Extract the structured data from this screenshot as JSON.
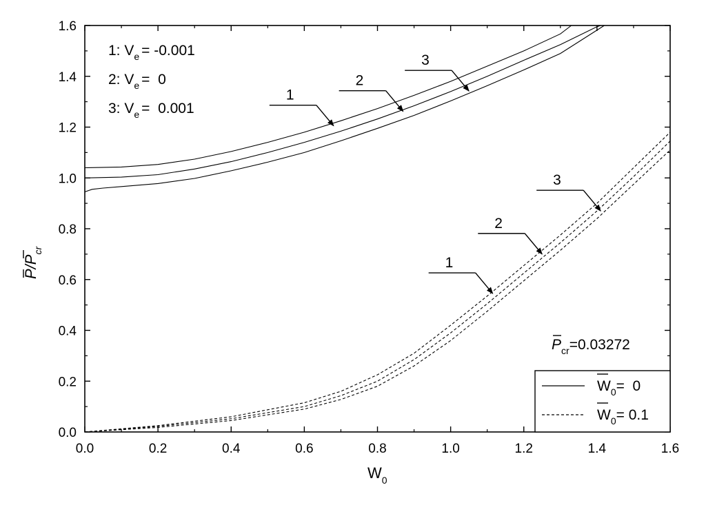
{
  "chart_data": {
    "type": "line",
    "xlim": [
      0,
      1.6
    ],
    "ylim": [
      0,
      1.6
    ],
    "x_ticks": [
      "0.0",
      "0.2",
      "0.4",
      "0.6",
      "0.8",
      "1.0",
      "1.2",
      "1.4",
      "1.6"
    ],
    "y_ticks": [
      "0.0",
      "0.2",
      "0.4",
      "0.6",
      "0.8",
      "1.0",
      "1.2",
      "1.4",
      "1.6"
    ],
    "xlabel": {
      "main": "W",
      "sub": "0"
    },
    "ylabel": {
      "p1": "P",
      "slash": "/",
      "p2": "P",
      "sub": "cr"
    },
    "grid": false,
    "legend": {
      "placement": "bottom-right",
      "entries": [
        {
          "main": "W",
          "sub": "0",
          "value": "=  0",
          "style": "solid"
        },
        {
          "main": "W",
          "sub": "0",
          "value": "= 0.1",
          "style": "dashed"
        }
      ]
    },
    "ve_labels": [
      {
        "prefix": "1: V",
        "sub": "e",
        "value": "= -0.001"
      },
      {
        "prefix": "2: V",
        "sub": "e",
        "value": "=  0"
      },
      {
        "prefix": "3: V",
        "sub": "e",
        "value": "=  0.001"
      }
    ],
    "pcr_label": {
      "main": "P",
      "sub": "cr",
      "value": "=0.03272"
    },
    "series": [
      {
        "group": "W0=0",
        "style": "solid",
        "label": "1",
        "x": [
          0,
          0.1,
          0.2,
          0.3,
          0.4,
          0.5,
          0.6,
          0.7,
          0.8,
          0.9,
          1.0,
          1.1,
          1.2,
          1.3,
          1.33
        ],
        "y": [
          1.04,
          1.043,
          1.053,
          1.074,
          1.104,
          1.14,
          1.18,
          1.225,
          1.273,
          1.325,
          1.38,
          1.44,
          1.5,
          1.567,
          1.6
        ]
      },
      {
        "group": "W0=0",
        "style": "solid",
        "label": "2",
        "x": [
          0,
          0.1,
          0.2,
          0.3,
          0.4,
          0.5,
          0.6,
          0.7,
          0.8,
          0.9,
          1.0,
          1.1,
          1.2,
          1.3,
          1.4,
          1.41
        ],
        "y": [
          1.0,
          1.003,
          1.013,
          1.035,
          1.064,
          1.1,
          1.14,
          1.184,
          1.232,
          1.284,
          1.34,
          1.4,
          1.463,
          1.525,
          1.595,
          1.6
        ]
      },
      {
        "group": "W0=0",
        "style": "solid",
        "label": "3",
        "x": [
          0,
          0.02,
          0.05,
          0.1,
          0.2,
          0.3,
          0.4,
          0.5,
          0.6,
          0.7,
          0.8,
          0.9,
          1.0,
          1.1,
          1.2,
          1.3,
          1.42
        ],
        "y": [
          0.945,
          0.955,
          0.96,
          0.966,
          0.978,
          0.998,
          1.028,
          1.062,
          1.1,
          1.146,
          1.195,
          1.246,
          1.303,
          1.363,
          1.425,
          1.49,
          1.6
        ]
      },
      {
        "group": "W0=0.1",
        "style": "dashed",
        "label": "1",
        "x": [
          0,
          0.2,
          0.4,
          0.6,
          0.7,
          0.8,
          0.9,
          1.0,
          1.1,
          1.2,
          1.3,
          1.4,
          1.5,
          1.6
        ],
        "y": [
          0,
          0.025,
          0.06,
          0.115,
          0.16,
          0.225,
          0.31,
          0.42,
          0.535,
          0.655,
          0.775,
          0.9,
          1.04,
          1.18
        ]
      },
      {
        "group": "W0=0.1",
        "style": "dashed",
        "label": "2",
        "x": [
          0,
          0.2,
          0.4,
          0.6,
          0.7,
          0.8,
          0.9,
          1.0,
          1.1,
          1.2,
          1.3,
          1.4,
          1.5,
          1.6
        ],
        "y": [
          0,
          0.022,
          0.052,
          0.1,
          0.143,
          0.2,
          0.285,
          0.39,
          0.505,
          0.625,
          0.745,
          0.87,
          1.005,
          1.145
        ]
      },
      {
        "group": "W0=0.1",
        "style": "dashed",
        "label": "3",
        "x": [
          0,
          0.2,
          0.4,
          0.6,
          0.7,
          0.8,
          0.9,
          1.0,
          1.1,
          1.2,
          1.3,
          1.4,
          1.5,
          1.6
        ],
        "y": [
          0,
          0.018,
          0.045,
          0.09,
          0.128,
          0.18,
          0.26,
          0.36,
          0.475,
          0.595,
          0.715,
          0.84,
          0.975,
          1.11
        ]
      }
    ],
    "annotations": [
      {
        "label": "1",
        "group": "solid",
        "x": 0.68,
        "y": 1.205
      },
      {
        "label": "2",
        "group": "solid",
        "x": 0.87,
        "y": 1.262
      },
      {
        "label": "3",
        "group": "solid",
        "x": 1.05,
        "y": 1.342
      },
      {
        "label": "1",
        "group": "dashed",
        "x": 1.115,
        "y": 0.545
      },
      {
        "label": "2",
        "group": "dashed",
        "x": 1.25,
        "y": 0.7
      },
      {
        "label": "3",
        "group": "dashed",
        "x": 1.41,
        "y": 0.87
      }
    ]
  }
}
